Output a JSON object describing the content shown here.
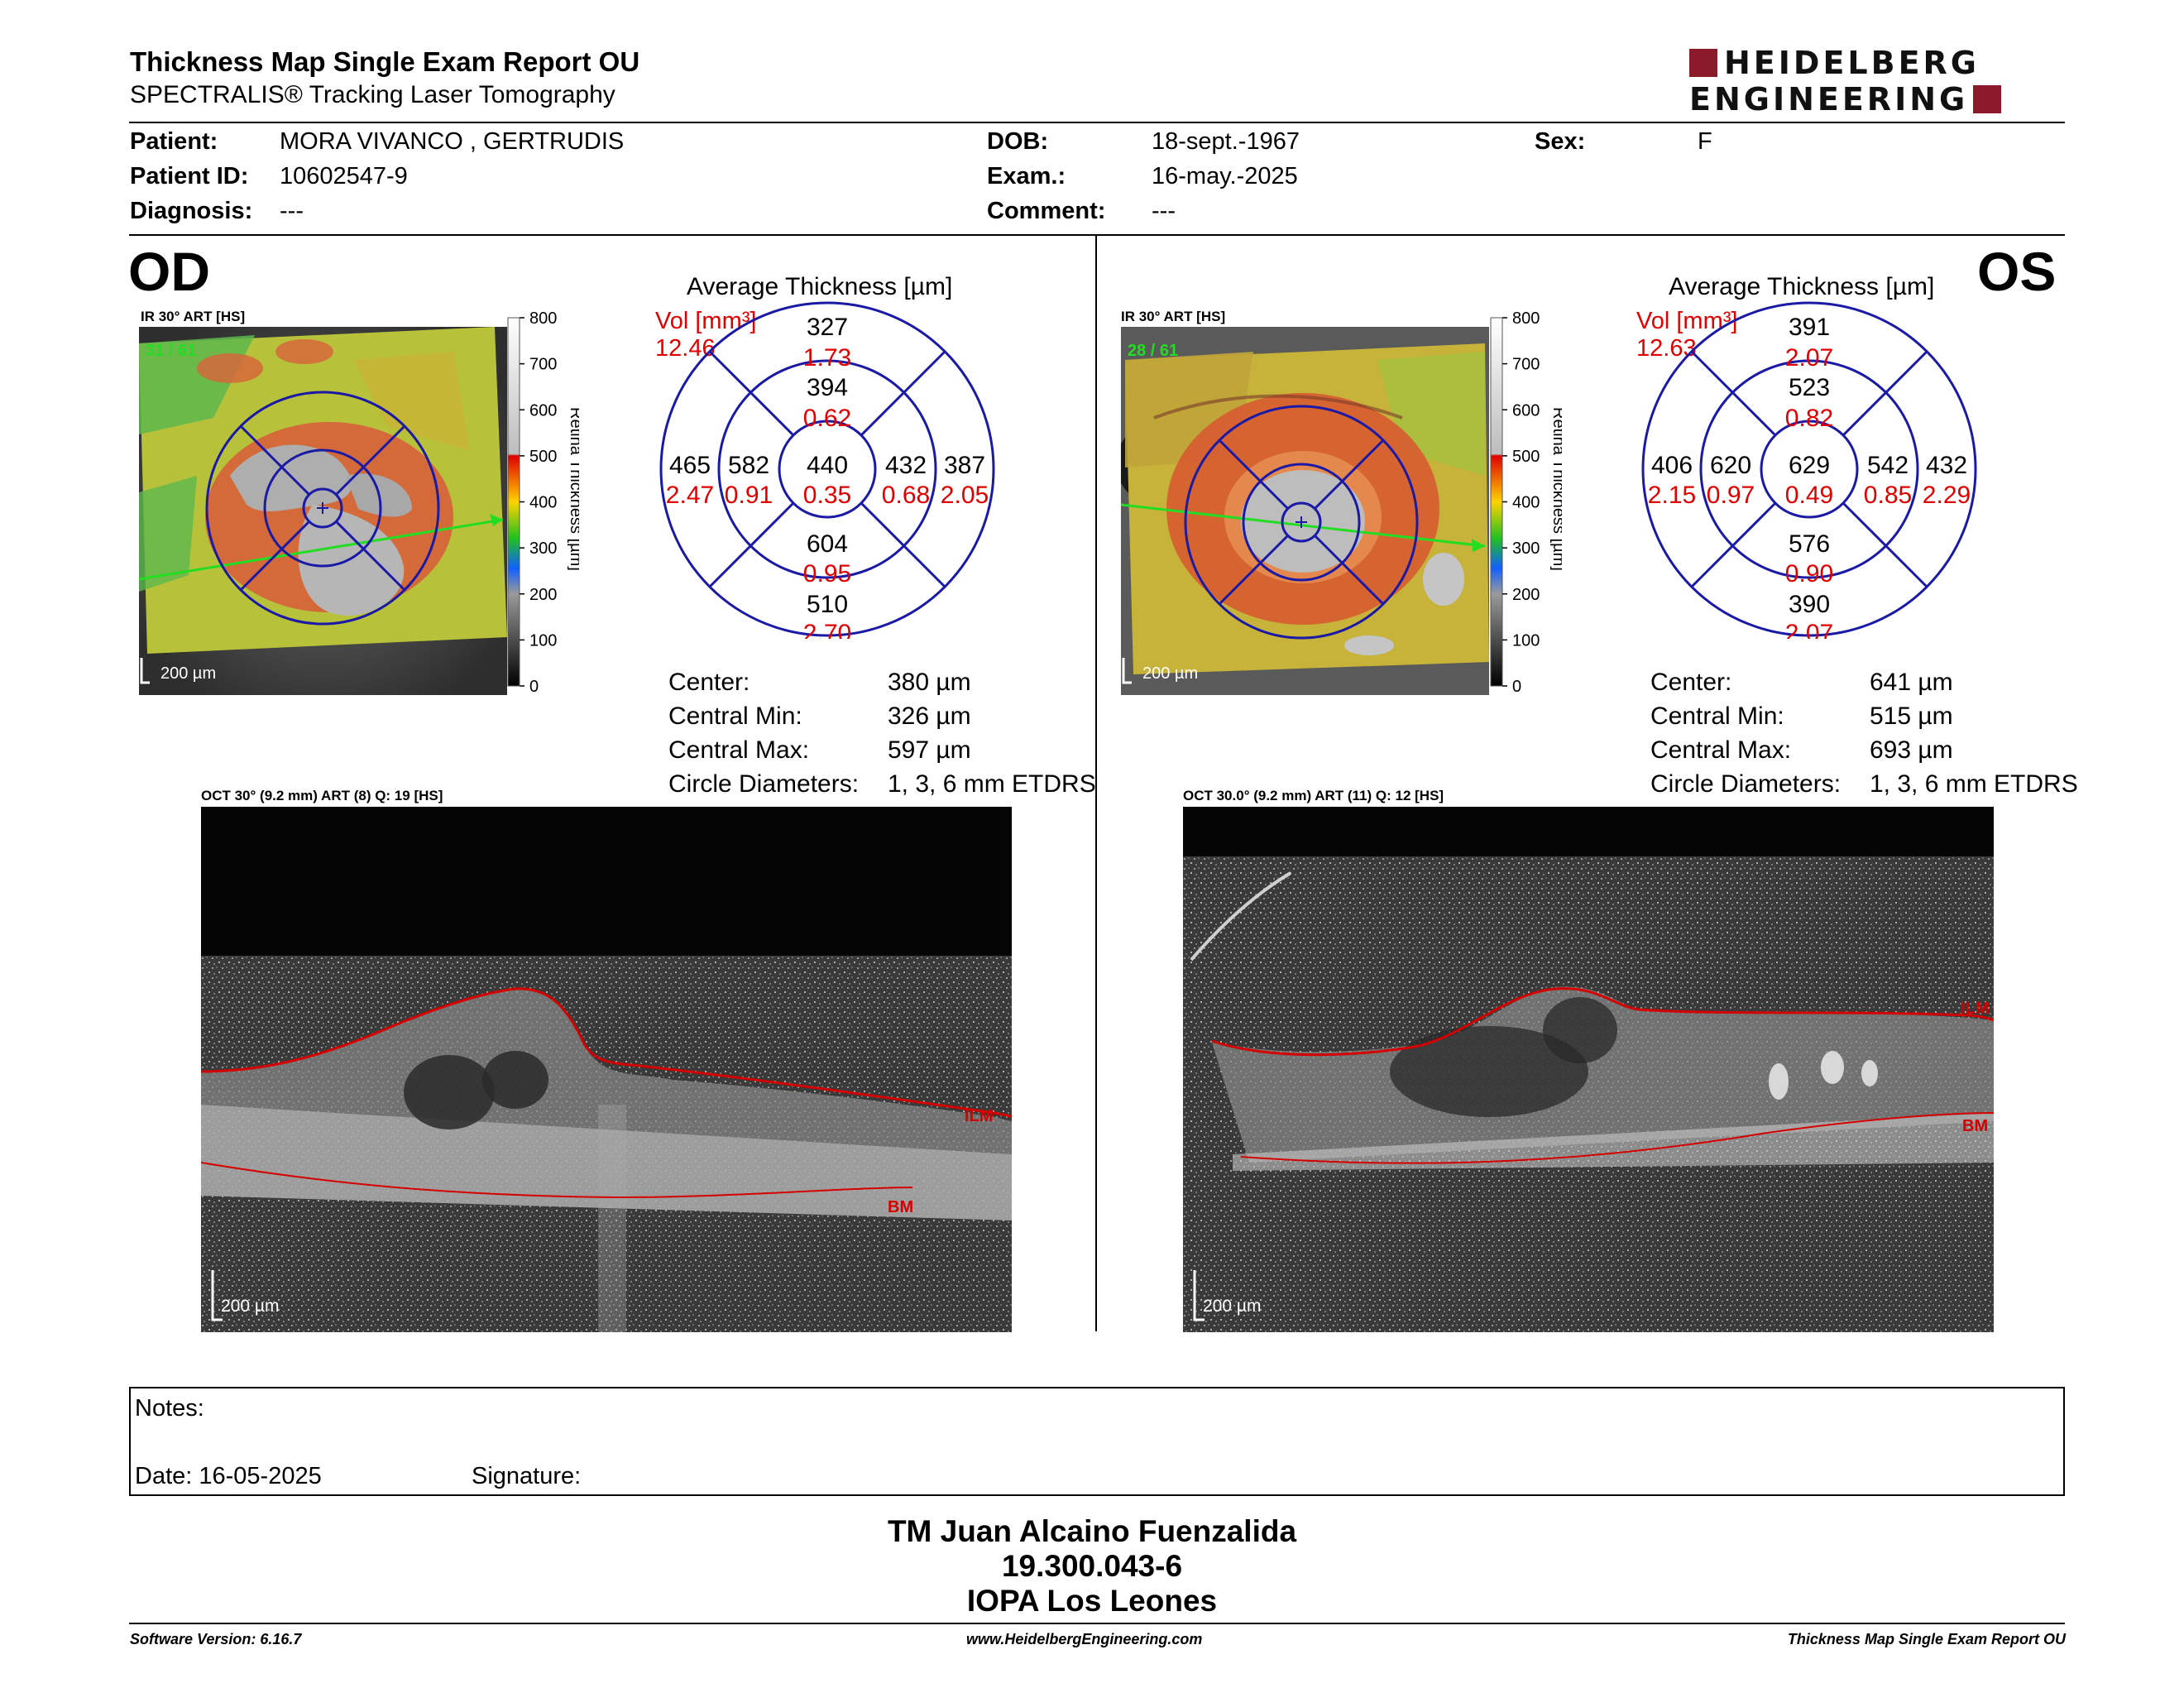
{
  "header": {
    "title": "Thickness Map Single Exam Report OU",
    "subtitle": "SPECTRALIS® Tracking Laser Tomography",
    "logo_line1": "HEIDELBERG",
    "logo_line2": "ENGINEERING"
  },
  "patient": {
    "patient_label": "Patient:",
    "patient_value": "MORA VIVANCO , GERTRUDIS",
    "id_label": "Patient ID:",
    "id_value": "10602547-9",
    "diagnosis_label": "Diagnosis:",
    "diagnosis_value": "---",
    "dob_label": "DOB:",
    "dob_value": "18-sept.-1967",
    "exam_label": "Exam.:",
    "exam_value": "16-may.-2025",
    "comment_label": "Comment:",
    "comment_value": "---",
    "sex_label": "Sex:",
    "sex_value": "F"
  },
  "scale": {
    "ticks": [
      "800",
      "700",
      "600",
      "500",
      "400",
      "300",
      "200",
      "100",
      "0"
    ],
    "axis_label": "Retina Thickness [µm]"
  },
  "od": {
    "eye_label": "OD",
    "ir_label": "IR 30° ART [HS]",
    "frames": "31 / 61",
    "scalebar": "200 µm",
    "chart_title": "Average Thickness [µm]",
    "vol_label": "Vol [mm³]",
    "vol_value": "12.46",
    "sectors": {
      "outer_sup": {
        "t": "327",
        "v": "1.73"
      },
      "inner_sup": {
        "t": "394",
        "v": "0.62"
      },
      "outer_temp": {
        "t": "465",
        "v": "2.47"
      },
      "inner_temp": {
        "t": "582",
        "v": "0.91"
      },
      "center": {
        "t": "440",
        "v": "0.35"
      },
      "inner_nas": {
        "t": "432",
        "v": "0.68"
      },
      "outer_nas": {
        "t": "387",
        "v": "2.05"
      },
      "inner_inf": {
        "t": "604",
        "v": "0.95"
      },
      "outer_inf": {
        "t": "510",
        "v": "2.70"
      }
    },
    "center_label": "Center:",
    "center_value": "380 µm",
    "cmin_label": "Central Min:",
    "cmin_value": "326 µm",
    "cmax_label": "Central Max:",
    "cmax_value": "597 µm",
    "diam_label": "Circle Diameters:",
    "diam_value": "1, 3, 6 mm ETDRS",
    "oct_label": "OCT 30° (9.2 mm) ART (8) Q: 19 [HS]",
    "ilm": "ILM",
    "bm": "BM",
    "oct_scalebar": "200 µm"
  },
  "os": {
    "eye_label": "OS",
    "ir_label": "IR 30° ART [HS]",
    "frames": "28 / 61",
    "scalebar": "200 µm",
    "chart_title": "Average Thickness [µm]",
    "vol_label": "Vol [mm³]",
    "vol_value": "12.63",
    "sectors": {
      "outer_sup": {
        "t": "391",
        "v": "2.07"
      },
      "inner_sup": {
        "t": "523",
        "v": "0.82"
      },
      "outer_temp": {
        "t": "406",
        "v": "2.15"
      },
      "inner_temp": {
        "t": "620",
        "v": "0.97"
      },
      "center": {
        "t": "629",
        "v": "0.49"
      },
      "inner_nas": {
        "t": "542",
        "v": "0.85"
      },
      "outer_nas": {
        "t": "432",
        "v": "2.29"
      },
      "inner_inf": {
        "t": "576",
        "v": "0.90"
      },
      "outer_inf": {
        "t": "390",
        "v": "2.07"
      }
    },
    "center_label": "Center:",
    "center_value": "641 µm",
    "cmin_label": "Central Min:",
    "cmin_value": "515 µm",
    "cmax_label": "Central Max:",
    "cmax_value": "693 µm",
    "diam_label": "Circle Diameters:",
    "diam_value": "1, 3, 6 mm ETDRS",
    "oct_label": "OCT 30.0° (9.2 mm) ART (11) Q: 12 [HS]",
    "ilm": "ILM",
    "bm": "BM",
    "oct_scalebar": "200 µm"
  },
  "notes": {
    "notes_label": "Notes:",
    "date_label": "Date: 16-05-2025",
    "signature_label": "Signature:"
  },
  "footer": {
    "name": "TM Juan Alcaino Fuenzalida",
    "rut": "19.300.043-6",
    "org": "IOPA Los Leones",
    "software": "Software Version: 6.16.7",
    "website": "www.HeidelbergEngineering.com",
    "report": "Thickness Map Single Exam Report OU"
  },
  "colors": {
    "accent": "#8b1a2b",
    "grid_blue": "#1a1aa6",
    "volume_red": "#e00000",
    "layer_red": "#d40000",
    "fixation_green": "#22dd22"
  }
}
